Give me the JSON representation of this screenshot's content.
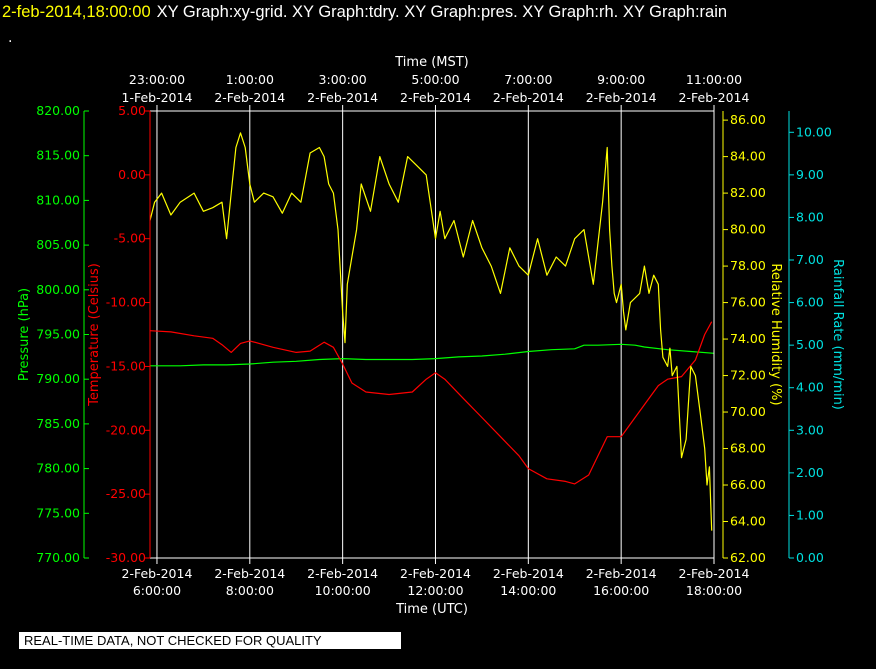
{
  "header": {
    "datetime": "2-feb-2014,18:00:00",
    "graphs": "XY Graph:xy-grid.  XY Graph:tdry.  XY Graph:pres.  XY Graph:rh.  XY Graph:rain",
    "continuation": "."
  },
  "disclaimer": "REAL-TIME DATA, NOT CHECKED FOR QUALITY",
  "colors": {
    "pressure": "#00ff00",
    "temperature": "#ff0000",
    "humidity": "#ffff00",
    "rain": "#00e0e0",
    "grid": "#ffffff",
    "background": "#000000"
  },
  "chart_data": {
    "type": "line",
    "x_top_title": "Time (MST)",
    "x_bottom_title": "Time (UTC)",
    "x_range_utc_hours": [
      5.85,
      18.0
    ],
    "grid": true,
    "top_ticks": [
      {
        "time": "23:00:00",
        "date": "1-Feb-2014",
        "utc_hour": 6
      },
      {
        "time": "1:00:00",
        "date": "2-Feb-2014",
        "utc_hour": 8
      },
      {
        "time": "3:00:00",
        "date": "2-Feb-2014",
        "utc_hour": 10
      },
      {
        "time": "5:00:00",
        "date": "2-Feb-2014",
        "utc_hour": 12
      },
      {
        "time": "7:00:00",
        "date": "2-Feb-2014",
        "utc_hour": 14
      },
      {
        "time": "9:00:00",
        "date": "2-Feb-2014",
        "utc_hour": 16
      },
      {
        "time": "11:00:00",
        "date": "2-Feb-2014",
        "utc_hour": 18
      }
    ],
    "bottom_ticks": [
      {
        "date": "2-Feb-2014",
        "time": "6:00:00",
        "utc_hour": 6
      },
      {
        "date": "2-Feb-2014",
        "time": "8:00:00",
        "utc_hour": 8
      },
      {
        "date": "2-Feb-2014",
        "time": "10:00:00",
        "utc_hour": 10
      },
      {
        "date": "2-Feb-2014",
        "time": "12:00:00",
        "utc_hour": 12
      },
      {
        "date": "2-Feb-2014",
        "time": "14:00:00",
        "utc_hour": 14
      },
      {
        "date": "2-Feb-2014",
        "time": "16:00:00",
        "utc_hour": 16
      },
      {
        "date": "2-Feb-2014",
        "time": "18:00:00",
        "utc_hour": 18
      }
    ],
    "axes": {
      "pressure": {
        "label": "Pressure (hPa)",
        "range": [
          770,
          820
        ],
        "ticks": [
          "820.00",
          "815.00",
          "810.00",
          "805.00",
          "800.00",
          "795.00",
          "790.00",
          "785.00",
          "780.00",
          "775.00",
          "770.00"
        ]
      },
      "temperature": {
        "label": "Temperature (Celsius)",
        "range": [
          -30,
          5
        ],
        "ticks": [
          "5.00",
          "0.00",
          "-5.00",
          "-10.00",
          "-15.00",
          "-20.00",
          "-25.00",
          "-30.00"
        ]
      },
      "humidity": {
        "label": "Relative Humidity (%)",
        "range": [
          62,
          86.5
        ],
        "ticks": [
          "86.00",
          "84.00",
          "82.00",
          "80.00",
          "78.00",
          "76.00",
          "74.00",
          "72.00",
          "70.00",
          "68.00",
          "66.00",
          "64.00",
          "62.00"
        ]
      },
      "rain": {
        "label": "Rainfall Rate (mm/min)",
        "range": [
          0,
          10.5
        ],
        "ticks": [
          "10.00",
          "9.00",
          "8.00",
          "7.00",
          "6.00",
          "5.00",
          "4.00",
          "3.00",
          "2.00",
          "1.00",
          "0.00"
        ]
      }
    },
    "series": [
      {
        "name": "pressure",
        "axis": "pressure",
        "x": [
          5.85,
          6.5,
          7.0,
          7.5,
          8.0,
          8.5,
          9.0,
          9.5,
          10.0,
          10.5,
          11.0,
          11.5,
          12.0,
          12.5,
          13.0,
          13.5,
          14.0,
          14.5,
          15.0,
          15.2,
          15.5,
          16.0,
          16.3,
          16.5,
          17.0,
          17.5,
          18.0
        ],
        "values": [
          791.5,
          791.5,
          791.6,
          791.6,
          791.7,
          791.9,
          792.0,
          792.2,
          792.3,
          792.2,
          792.2,
          792.2,
          792.3,
          792.5,
          792.6,
          792.8,
          793.1,
          793.3,
          793.4,
          793.8,
          793.8,
          793.9,
          793.8,
          793.6,
          793.3,
          793.1,
          792.9
        ]
      },
      {
        "name": "temperature",
        "axis": "temperature",
        "x": [
          5.85,
          6.3,
          6.8,
          7.2,
          7.4,
          7.6,
          7.8,
          8.0,
          8.5,
          9.0,
          9.3,
          9.6,
          9.8,
          10.0,
          10.2,
          10.5,
          11.0,
          11.5,
          11.8,
          12.0,
          12.2,
          12.6,
          13.0,
          13.4,
          13.8,
          14.0,
          14.4,
          14.8,
          15.0,
          15.3,
          15.5,
          15.7,
          16.0,
          16.3,
          16.6,
          16.8,
          17.0,
          17.3,
          17.6,
          17.8,
          17.95
        ],
        "values": [
          -12.2,
          -12.3,
          -12.6,
          -12.8,
          -13.3,
          -13.9,
          -13.2,
          -13.0,
          -13.5,
          -13.9,
          -13.8,
          -13.1,
          -13.5,
          -14.8,
          -16.3,
          -17.0,
          -17.2,
          -17.0,
          -16.0,
          -15.5,
          -16.0,
          -17.5,
          -19.0,
          -20.5,
          -22.0,
          -23.0,
          -23.8,
          -24.0,
          -24.2,
          -23.5,
          -22.0,
          -20.5,
          -20.5,
          -19.0,
          -17.5,
          -16.5,
          -16.0,
          -15.8,
          -14.5,
          -12.5,
          -11.5
        ]
      },
      {
        "name": "humidity",
        "axis": "humidity",
        "x": [
          5.85,
          5.95,
          6.1,
          6.3,
          6.5,
          6.8,
          7.0,
          7.2,
          7.4,
          7.5,
          7.6,
          7.7,
          7.8,
          7.9,
          8.0,
          8.1,
          8.3,
          8.5,
          8.7,
          8.9,
          9.1,
          9.3,
          9.5,
          9.6,
          9.7,
          9.8,
          9.9,
          10.0,
          10.05,
          10.1,
          10.2,
          10.3,
          10.4,
          10.6,
          10.8,
          11.0,
          11.2,
          11.4,
          11.6,
          11.8,
          12.0,
          12.1,
          12.2,
          12.4,
          12.6,
          12.8,
          13.0,
          13.2,
          13.4,
          13.6,
          13.8,
          14.0,
          14.2,
          14.4,
          14.6,
          14.8,
          15.0,
          15.2,
          15.4,
          15.6,
          15.7,
          15.75,
          15.8,
          15.85,
          15.9,
          16.0,
          16.05,
          16.1,
          16.2,
          16.4,
          16.5,
          16.6,
          16.7,
          16.8,
          16.85,
          16.9,
          17.0,
          17.05,
          17.1,
          17.2,
          17.3,
          17.4,
          17.5,
          17.6,
          17.7,
          17.8,
          17.85,
          17.9,
          17.95
        ],
        "values": [
          80.5,
          81.5,
          82.0,
          80.8,
          81.5,
          82.0,
          81.0,
          81.2,
          81.5,
          79.5,
          82.0,
          84.5,
          85.3,
          84.5,
          82.5,
          81.5,
          82.0,
          81.8,
          80.9,
          82.0,
          81.5,
          84.2,
          84.5,
          84.0,
          82.5,
          82.0,
          80.0,
          75.5,
          73.8,
          77.0,
          78.5,
          80.0,
          82.5,
          81.0,
          84.0,
          82.5,
          81.5,
          84.0,
          83.5,
          83.0,
          79.5,
          81.0,
          79.5,
          80.5,
          78.5,
          80.5,
          79.0,
          78.0,
          76.5,
          79.0,
          78.0,
          77.5,
          79.5,
          77.5,
          78.5,
          78.0,
          79.5,
          80.0,
          77.0,
          81.5,
          84.5,
          80.0,
          78.0,
          76.5,
          76.0,
          77.0,
          75.5,
          74.5,
          76.0,
          76.5,
          78.0,
          76.5,
          77.5,
          77.0,
          74.5,
          73.0,
          72.5,
          73.5,
          72.0,
          72.5,
          67.5,
          68.5,
          72.5,
          72.0,
          70.0,
          68.0,
          66.0,
          67.0,
          63.5
        ]
      }
    ]
  }
}
